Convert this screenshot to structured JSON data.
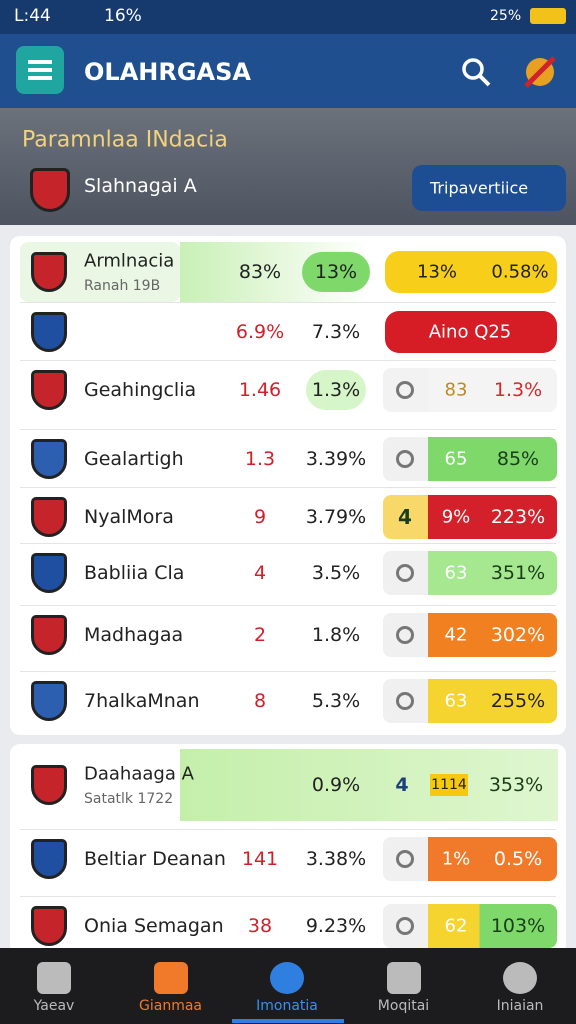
{
  "status_bar": {
    "time": "L:44",
    "left_percent": "16%",
    "battery": "25%"
  },
  "app_bar": {
    "title": "OLAHRGASA"
  },
  "header": {
    "title": "Paramnlaa INdacia",
    "team": "Slahnagai A",
    "button": "Tripavertiice"
  },
  "table": {
    "rows": [
      {
        "name": "Armlnacia",
        "sub": "Ranah 19B",
        "a": "83%",
        "b": "13%",
        "c": "13%",
        "d": "0.58%"
      },
      {
        "a": "6.9%",
        "b": "7.3%",
        "d": "Aino Q25"
      },
      {
        "name": "Geahingclia",
        "a": "1.46",
        "b": "1.3%",
        "c": "83",
        "d": "1.3%"
      },
      {
        "name": "Gealartigh",
        "a": "1.3",
        "b": "3.39%",
        "c": "65",
        "d": "85%"
      },
      {
        "name": "NyalMora",
        "a": "9",
        "b": "3.79%",
        "icon": "4",
        "c": "9%",
        "d": "223%"
      },
      {
        "name": "Babliia Cla",
        "a": "4",
        "b": "3.5%",
        "c": "63",
        "d": "351%"
      },
      {
        "name": "Madhagaa",
        "a": "2",
        "b": "1.8%",
        "c": "42",
        "d": "302%"
      },
      {
        "name": "7halkaMnan",
        "a": "8",
        "b": "5.3%",
        "c": "63",
        "d": "255%"
      },
      {
        "name": "Daahaaga A",
        "sub": "Satatlk 1722",
        "b": "0.9%",
        "icon": "4",
        "c": "1114",
        "d": "353%"
      },
      {
        "name": "Beltiar Deanan",
        "a": "141",
        "b": "3.38%",
        "c": "1%",
        "d": "0.5%"
      },
      {
        "name": "Onia Semagan",
        "a": "38",
        "b": "9.23%",
        "c": "62",
        "d": "103%"
      }
    ]
  },
  "nav": {
    "items": [
      "Yaeav",
      "Gianmaa",
      "Imonatia",
      "Moqitai",
      "Iniaian"
    ]
  }
}
